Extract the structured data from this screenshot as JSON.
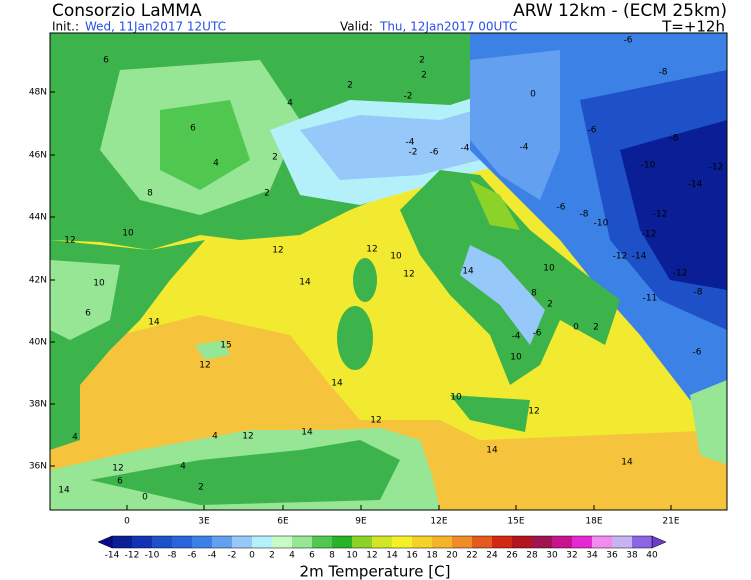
{
  "header": {
    "title": "Consorzio LaMMA",
    "model": "ARW 12km - (ECM 25km)",
    "init_label": "Init.:",
    "init_value": "Wed, 11Jan2017 12UTC",
    "valid_label": "Valid:",
    "valid_value": "Thu, 12Jan2017 00UTC",
    "lead_time": "T=+12h"
  },
  "map": {
    "lat_labels": [
      "48N",
      "46N",
      "44N",
      "42N",
      "40N",
      "38N",
      "36N"
    ],
    "lon_labels": [
      "0",
      "3E",
      "6E",
      "9E",
      "12E",
      "15E",
      "18E",
      "21E"
    ],
    "contour_labels": [
      "6",
      "6",
      "4",
      "2",
      "2",
      "2",
      "0",
      "-2",
      "-4",
      "-2",
      "-6",
      "-4",
      "-4",
      "-6",
      "-8",
      "-6",
      "-8",
      "-10",
      "-12",
      "-14",
      "-12",
      "-12",
      "-10",
      "-8",
      "-6",
      "-14",
      "-12",
      "-12",
      "-11",
      "-8",
      "-6",
      "2",
      "4",
      "2",
      "8",
      "10",
      "12",
      "10",
      "14",
      "6",
      "12",
      "14",
      "12",
      "10",
      "12",
      "14",
      "10",
      "8",
      "2",
      "-6",
      "-4",
      "0",
      "2",
      "10",
      "12",
      "15",
      "14",
      "14",
      "12",
      "10",
      "12",
      "14",
      "14",
      "4",
      "4",
      "12",
      "6",
      "2",
      "0",
      "14",
      "12",
      "4"
    ]
  },
  "colorbar": {
    "title": "2m Temperature [C]",
    "labels": [
      -14,
      -12,
      -10,
      -8,
      -6,
      -4,
      -2,
      0,
      2,
      4,
      6,
      8,
      10,
      12,
      14,
      16,
      18,
      20,
      22,
      24,
      26,
      28,
      30,
      32,
      34,
      36,
      38,
      40
    ],
    "colors": [
      "#0a1e96",
      "#1432b4",
      "#1e50c8",
      "#2864dc",
      "#3c82e6",
      "#64a0f0",
      "#96c8fa",
      "#b4f0fa",
      "#c8fac8",
      "#96e696",
      "#50c850",
      "#28b428",
      "#8cd228",
      "#d2e628",
      "#f5f028",
      "#f5d228",
      "#f5b428",
      "#f08c28",
      "#e65a1e",
      "#d22814",
      "#b4141e",
      "#a01450",
      "#c8148c",
      "#e628d2",
      "#f08cf0",
      "#c8b4f0",
      "#8c64e6"
    ],
    "low_color": "#0a0a8c",
    "high_color": "#6e3cc8"
  }
}
